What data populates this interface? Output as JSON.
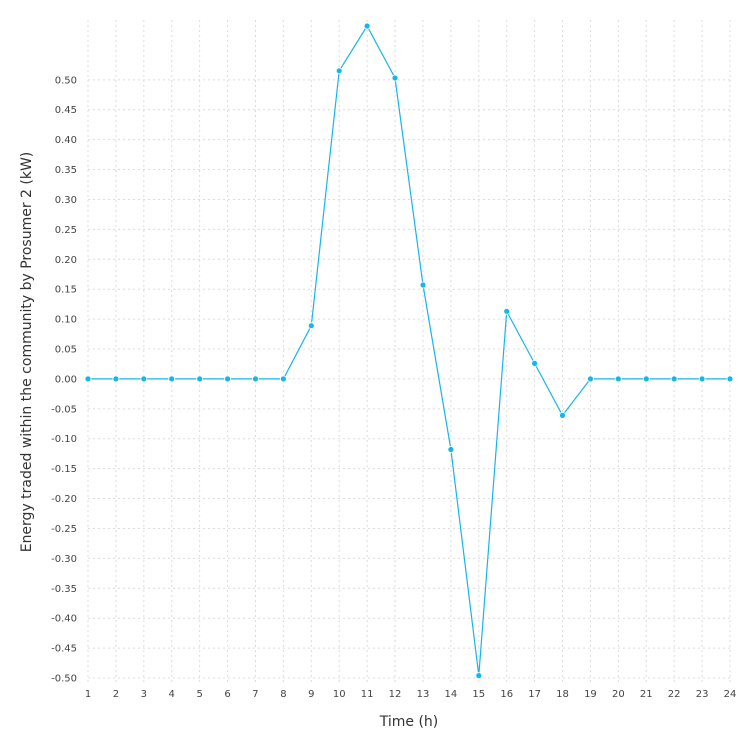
{
  "chart_data": {
    "type": "line",
    "xlabel": "Time (h)",
    "ylabel": "Energy traded within the community by Prosumer 2 (kW)",
    "x": [
      1,
      2,
      3,
      4,
      5,
      6,
      7,
      8,
      9,
      10,
      11,
      12,
      13,
      14,
      15,
      16,
      17,
      18,
      19,
      20,
      21,
      22,
      23,
      24
    ],
    "series": [
      {
        "values": [
          0,
          0,
          0,
          0,
          0,
          0,
          0,
          0,
          0.089,
          0.515,
          0.59,
          0.503,
          0.157,
          -0.118,
          -0.496,
          0.113,
          0.026,
          -0.061,
          0,
          0,
          0,
          0,
          0,
          0
        ]
      }
    ],
    "x_ticks": [
      "1",
      "2",
      "3",
      "4",
      "5",
      "6",
      "7",
      "8",
      "9",
      "10",
      "11",
      "12",
      "13",
      "14",
      "15",
      "16",
      "17",
      "18",
      "19",
      "20",
      "21",
      "22",
      "23",
      "24"
    ],
    "y_ticks": [
      0.5,
      0.45,
      0.4,
      0.35,
      0.3,
      0.25,
      0.2,
      0.15,
      0.1,
      0.05,
      0,
      -0.05,
      -0.1,
      -0.15,
      -0.2,
      -0.25,
      -0.3,
      -0.35,
      -0.4,
      -0.45,
      -0.5
    ],
    "y_tick_labels": [
      "0.50",
      "0.45",
      "0.40",
      "0.35",
      "0.30",
      "0.25",
      "0.20",
      "0.15",
      "0.10",
      "0.05",
      "0.00",
      "-0.05",
      "-0.10",
      "-0.15",
      "-0.20",
      "-0.25",
      "-0.30",
      "-0.35",
      "-0.40",
      "-0.45",
      "-0.50"
    ],
    "xlim": [
      1,
      24
    ],
    "ylim": [
      -0.51,
      0.6
    ],
    "grid": true,
    "legend": "none",
    "colors": {
      "series": "#18b6e6",
      "grid": "#dcdcdc",
      "text": "#444444"
    }
  }
}
